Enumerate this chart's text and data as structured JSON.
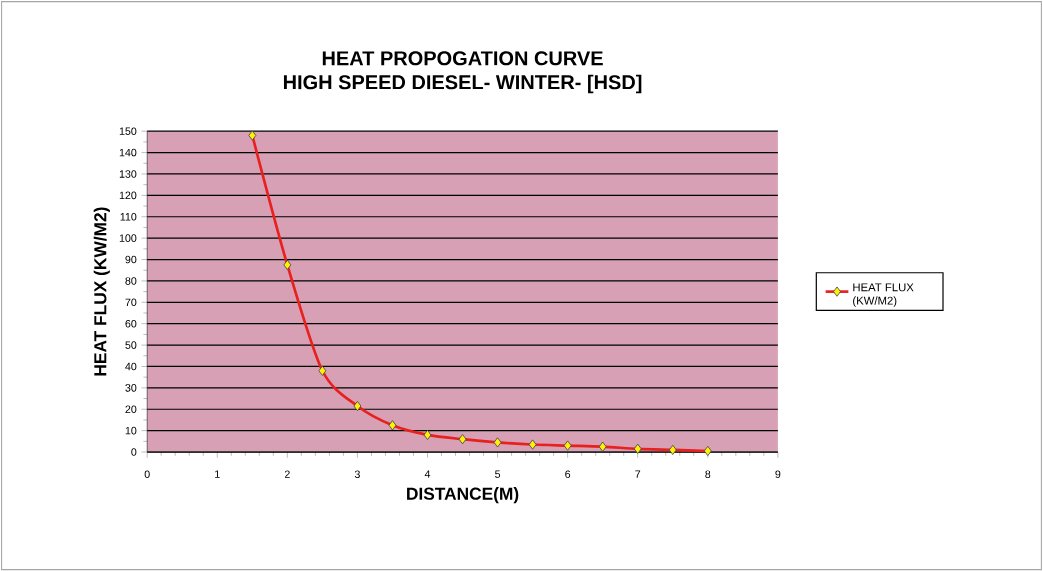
{
  "chart_data": {
    "type": "line",
    "title": "HEAT PROPOGATION CURVE",
    "subtitle": "HIGH SPEED DIESEL- WINTER- [HSD]",
    "xlabel": "DISTANCE(M)",
    "ylabel": "HEAT FLUX (KW/M2)",
    "x": [
      1.5,
      2,
      2.5,
      3,
      3.5,
      4,
      4.5,
      5,
      5.5,
      6,
      6.5,
      7,
      7.5,
      8
    ],
    "series": [
      {
        "name": "HEAT FLUX (KW/M2)",
        "color": "#e8201e",
        "values": [
          148,
          87.5,
          38,
          21.5,
          12.5,
          8,
          6,
          4.5,
          3.5,
          3,
          2.5,
          1.5,
          1,
          0.5
        ]
      }
    ],
    "xlim": [
      0,
      9
    ],
    "ylim": [
      0,
      150
    ],
    "xticks": [
      0,
      1,
      2,
      3,
      4,
      5,
      6,
      7,
      8,
      9
    ],
    "yticks": [
      0,
      10,
      20,
      30,
      40,
      50,
      60,
      70,
      80,
      90,
      100,
      110,
      120,
      130,
      140,
      150
    ],
    "grid": "y",
    "legend": "right",
    "marker": "diamond",
    "line_style": "solid"
  }
}
